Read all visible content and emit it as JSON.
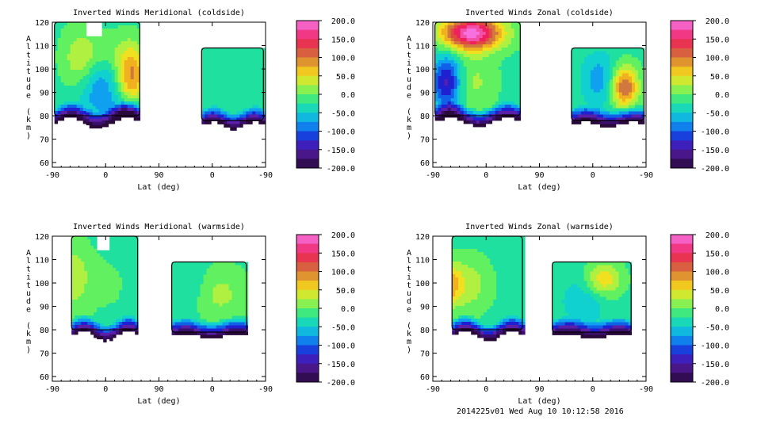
{
  "footer": "2014225v01 Wed Aug 10 10:12:58 2016",
  "chart_data": [
    {
      "type": "heatmap",
      "title": "Inverted Winds Meridional (coldside)",
      "xlabel": "Lat (deg)",
      "ylabel": "Altitude (km)",
      "x_ticks": [
        "-90",
        "0",
        "90",
        "0",
        "-90"
      ],
      "y_ticks": [
        "60",
        "70",
        "80",
        "90",
        "100",
        "110",
        "120"
      ],
      "ylim": [
        58,
        120
      ],
      "colorbar": {
        "min": -200,
        "max": 200,
        "labels": [
          "200.0",
          "150.0",
          "100.0",
          "50.0",
          "0.0",
          "-50.0",
          "-100.0",
          "-150.0",
          "-200.0"
        ]
      },
      "blobs": [
        {
          "x": 0.42,
          "y": 92,
          "sx": 0.17,
          "sy": 9,
          "v": -70
        },
        {
          "x": 0.25,
          "y": 103,
          "sx": 0.12,
          "sy": 10,
          "v": 60
        },
        {
          "x": 0.72,
          "y": 98,
          "sx": 0.1,
          "sy": 9,
          "v": 120
        },
        {
          "x": 0.5,
          "y": 108,
          "sx": 0.15,
          "sy": 6,
          "v": 20
        },
        {
          "x": 0.7,
          "y": 82,
          "sx": 0.12,
          "sy": 4,
          "v": -60
        }
      ],
      "regions": [
        {
          "x0": 0.02,
          "x1": 0.82,
          "b0": 75,
          "b1": 80,
          "t0": 120,
          "t1": 120,
          "notch": true
        },
        {
          "x0": 1.4,
          "x1": 1.98,
          "b0": 75,
          "b1": 78,
          "t0": 109,
          "t1": 109
        }
      ]
    },
    {
      "type": "heatmap",
      "title": "Inverted Winds Zonal (coldside)",
      "xlabel": "Lat (deg)",
      "ylabel": "Altitude (km)",
      "x_ticks": [
        "-90",
        "0",
        "90",
        "0",
        "-90"
      ],
      "y_ticks": [
        "60",
        "70",
        "80",
        "90",
        "100",
        "110",
        "120"
      ],
      "ylim": [
        58,
        120
      ],
      "colorbar": {
        "min": -200,
        "max": 200,
        "labels": [
          "200.0",
          "150.0",
          "100.0",
          "50.0",
          "0.0",
          "-50.0",
          "-100.0",
          "-150.0",
          "-200.0"
        ]
      },
      "blobs": [
        {
          "x": 0.35,
          "y": 116,
          "sx": 0.2,
          "sy": 5,
          "v": 220
        },
        {
          "x": 0.35,
          "y": 95,
          "sx": 0.15,
          "sy": 8,
          "v": 40
        },
        {
          "x": 0.12,
          "y": 95,
          "sx": 0.1,
          "sy": 8,
          "v": -130
        },
        {
          "x": 1.78,
          "y": 93,
          "sx": 0.09,
          "sy": 6,
          "v": 140
        },
        {
          "x": 1.55,
          "y": 96,
          "sx": 0.12,
          "sy": 8,
          "v": -60
        }
      ],
      "regions": [
        {
          "x0": 0.02,
          "x1": 0.82,
          "b0": 76,
          "b1": 80,
          "t0": 120,
          "t1": 120
        },
        {
          "x0": 1.3,
          "x1": 1.98,
          "b0": 76,
          "b1": 78,
          "t0": 109,
          "t1": 109
        }
      ]
    },
    {
      "type": "heatmap",
      "title": "Inverted Winds Meridional (warmside)",
      "xlabel": "Lat (deg)",
      "ylabel": "Altitude (km)",
      "x_ticks": [
        "-90",
        "0",
        "90",
        "0",
        "-90"
      ],
      "y_ticks": [
        "60",
        "70",
        "80",
        "90",
        "100",
        "110",
        "120"
      ],
      "ylim": [
        58,
        120
      ],
      "colorbar": {
        "min": -200,
        "max": 200,
        "labels": [
          "200.0",
          "150.0",
          "100.0",
          "50.0",
          "0.0",
          "-50.0",
          "-100.0",
          "-150.0",
          "-200.0"
        ]
      },
      "blobs": [
        {
          "x": 0.18,
          "y": 103,
          "sx": 0.12,
          "sy": 10,
          "v": 50
        },
        {
          "x": 0.52,
          "y": 100,
          "sx": 0.15,
          "sy": 10,
          "v": 10
        },
        {
          "x": 1.55,
          "y": 96,
          "sx": 0.18,
          "sy": 8,
          "v": 40
        },
        {
          "x": 1.3,
          "y": 100,
          "sx": 0.12,
          "sy": 8,
          "v": -20
        }
      ],
      "regions": [
        {
          "x0": 0.18,
          "x1": 0.8,
          "b0": 76,
          "b1": 80,
          "t0": 120,
          "t1": 120,
          "notch": true
        },
        {
          "x0": 1.12,
          "x1": 1.82,
          "b0": 77,
          "b1": 79,
          "t0": 109,
          "t1": 109
        }
      ]
    },
    {
      "type": "heatmap",
      "title": "Inverted Winds Zonal (warmside)",
      "xlabel": "Lat (deg)",
      "ylabel": "Altitude (km)",
      "x_ticks": [
        "-90",
        "0",
        "90",
        "0",
        "-90"
      ],
      "y_ticks": [
        "60",
        "70",
        "80",
        "90",
        "100",
        "110",
        "120"
      ],
      "ylim": [
        58,
        120
      ],
      "colorbar": {
        "min": -200,
        "max": 200,
        "labels": [
          "200.0",
          "150.0",
          "100.0",
          "50.0",
          "0.0",
          "-50.0",
          "-100.0",
          "-150.0",
          "-200.0"
        ]
      },
      "blobs": [
        {
          "x": 0.3,
          "y": 100,
          "sx": 0.15,
          "sy": 8,
          "v": 50
        },
        {
          "x": 0.12,
          "y": 100,
          "sx": 0.08,
          "sy": 6,
          "v": 90
        },
        {
          "x": 1.58,
          "y": 102,
          "sx": 0.12,
          "sy": 5,
          "v": 80
        },
        {
          "x": 1.4,
          "y": 93,
          "sx": 0.15,
          "sy": 8,
          "v": -40
        }
      ],
      "regions": [
        {
          "x0": 0.18,
          "x1": 0.84,
          "b0": 76,
          "b1": 80,
          "t0": 120,
          "t1": 120
        },
        {
          "x0": 1.12,
          "x1": 1.86,
          "b0": 77,
          "b1": 79,
          "t0": 109,
          "t1": 109
        }
      ]
    }
  ]
}
